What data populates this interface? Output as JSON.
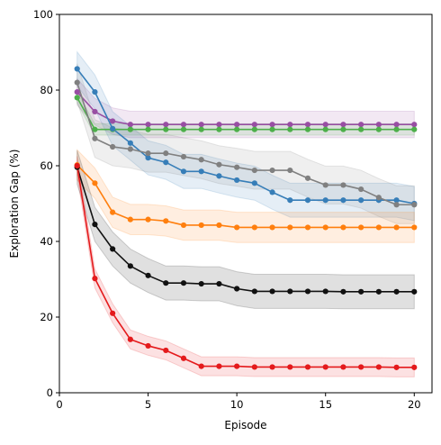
{
  "chart_data": {
    "type": "line",
    "title": "",
    "xlabel": "Episode",
    "ylabel": "Exploration Gap (%)",
    "xlim": [
      0,
      21
    ],
    "ylim": [
      0,
      100
    ],
    "xticks": [
      0,
      5,
      10,
      15,
      20
    ],
    "yticks": [
      0,
      20,
      40,
      60,
      80,
      100
    ],
    "grid": false,
    "legend": "none",
    "x": [
      1,
      2,
      3,
      4,
      5,
      6,
      7,
      8,
      9,
      10,
      11,
      12,
      13,
      14,
      15,
      16,
      17,
      18,
      19,
      20
    ],
    "series": [
      {
        "color": "#984ea3",
        "values": [
          79.5,
          74.3,
          71.8,
          70.9,
          70.9,
          70.9,
          70.9,
          70.9,
          70.9,
          70.9,
          70.9,
          70.9,
          70.9,
          70.9,
          70.9,
          70.9,
          70.9,
          70.9,
          70.9,
          70.9
        ],
        "band": 3.5
      },
      {
        "color": "#4daf4a",
        "values": [
          78.0,
          69.6,
          69.6,
          69.6,
          69.6,
          69.6,
          69.6,
          69.6,
          69.6,
          69.6,
          69.6,
          69.6,
          69.6,
          69.6,
          69.6,
          69.6,
          69.6,
          69.6,
          69.6,
          69.6
        ],
        "band": 1.5
      },
      {
        "color": "#377eb8",
        "values": [
          85.6,
          79.5,
          69.8,
          66.0,
          62.1,
          60.9,
          58.5,
          58.5,
          57.3,
          56.2,
          55.4,
          53.0,
          50.9,
          50.9,
          50.9,
          50.9,
          50.9,
          50.9,
          50.9,
          50.0
        ],
        "band": 4.5
      },
      {
        "color": "#808080",
        "values": [
          82.0,
          67.2,
          65.0,
          64.4,
          63.3,
          63.3,
          62.4,
          61.6,
          60.3,
          59.6,
          58.8,
          58.8,
          58.8,
          56.7,
          54.9,
          54.9,
          53.8,
          51.6,
          49.7,
          49.7
        ],
        "band": 5.0
      },
      {
        "color": "#ff7f0e",
        "values": [
          60.2,
          55.4,
          47.7,
          45.8,
          45.8,
          45.4,
          44.3,
          44.3,
          44.3,
          43.7,
          43.7,
          43.7,
          43.7,
          43.7,
          43.7,
          43.7,
          43.7,
          43.7,
          43.7,
          43.7
        ],
        "band": 4.0
      },
      {
        "color": "#111111",
        "values": [
          59.6,
          44.5,
          38.0,
          33.5,
          31.0,
          29.0,
          29.0,
          28.8,
          28.8,
          27.5,
          26.8,
          26.8,
          26.8,
          26.8,
          26.8,
          26.7,
          26.7,
          26.7,
          26.7,
          26.7
        ],
        "band": 4.5
      },
      {
        "color": "#e41a1c",
        "values": [
          60.0,
          30.2,
          21.0,
          14.1,
          12.4,
          11.2,
          9.1,
          7.0,
          7.0,
          7.0,
          6.8,
          6.8,
          6.8,
          6.8,
          6.8,
          6.8,
          6.8,
          6.8,
          6.7,
          6.7
        ],
        "band": 2.5
      }
    ]
  }
}
